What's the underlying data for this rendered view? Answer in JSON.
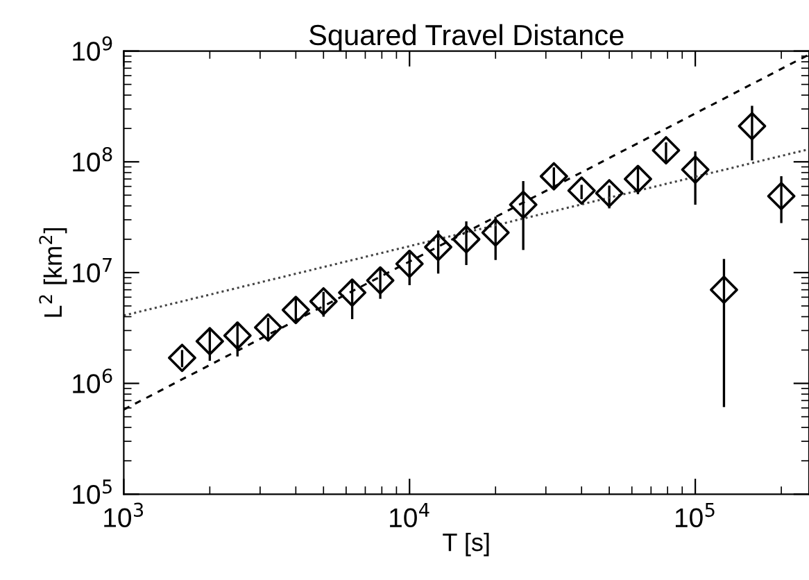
{
  "chart_data": {
    "type": "scatter",
    "title": "Squared Travel Distance",
    "xlabel": "T [s]",
    "ylabel": "L$^{2}$ [km$^{2}$]",
    "log": "xy",
    "grid": false,
    "legend": false,
    "xlim": [
      1000,
      250000
    ],
    "ylim": [
      100000,
      1000000000
    ],
    "xticks": [
      {
        "value": 1000,
        "label": "10$^{3}$"
      },
      {
        "value": 10000,
        "label": "10$^{4}$"
      },
      {
        "value": 100000,
        "label": "10$^{5}$"
      }
    ],
    "yticks": [
      {
        "value": 100000,
        "label": "10$^{5}$"
      },
      {
        "value": 1000000,
        "label": "10$^{6}$"
      },
      {
        "value": 10000000,
        "label": "10$^{7}$"
      },
      {
        "value": 100000000,
        "label": "10$^{8}$"
      },
      {
        "value": 1000000000,
        "label": "10$^{9}$"
      }
    ],
    "series": [
      {
        "color": "#000000",
        "marker": "diamond",
        "x": [
          1600,
          2000,
          2500,
          3200,
          4000,
          5000,
          6300,
          7900,
          10000,
          12600,
          15800,
          20000,
          25000,
          32000,
          40000,
          50000,
          63000,
          79000,
          100000,
          126000,
          158000,
          200000
        ],
        "values": [
          1700000,
          2400000,
          2700000,
          3200000,
          4600000,
          5500000,
          6600000,
          8500000,
          12000000,
          17000000,
          20000000,
          23000000,
          41000000,
          74000000,
          55000000,
          52000000,
          70000000,
          127000000,
          85000000,
          7000000,
          210000000,
          49000000
        ],
        "errors": [
          [
            1400000,
            2000000
          ],
          [
            1600000,
            3200000
          ],
          [
            1750000,
            3600000
          ],
          [
            2400000,
            3900000
          ],
          [
            3600000,
            5800000
          ],
          [
            4000000,
            6700000
          ],
          [
            3800000,
            8300000
          ],
          [
            5800000,
            10800000
          ],
          [
            7700000,
            15000000
          ],
          [
            9800000,
            24000000
          ],
          [
            11700000,
            29000000
          ],
          [
            13000000,
            32000000
          ],
          [
            16000000,
            67000000
          ],
          [
            58000000,
            89000000
          ],
          [
            46000000,
            62000000
          ],
          [
            38000000,
            61000000
          ],
          [
            51000000,
            88000000
          ],
          [
            100000000,
            150000000
          ],
          [
            41000000,
            124000000
          ],
          [
            610000,
            13300000
          ],
          [
            103000000,
            320000000
          ],
          [
            28000000,
            74000000
          ]
        ]
      },
      {
        "type": "line",
        "color": "#000000",
        "line_style": "dashed",
        "marker": "none",
        "x": [
          1000,
          250000
        ],
        "values": [
          580000,
          930000000
        ]
      },
      {
        "type": "line",
        "color": "#444444",
        "line_style": "dotted",
        "marker": "none",
        "x": [
          1000,
          250000
        ],
        "values": [
          4100000,
          130000000
        ]
      }
    ]
  }
}
